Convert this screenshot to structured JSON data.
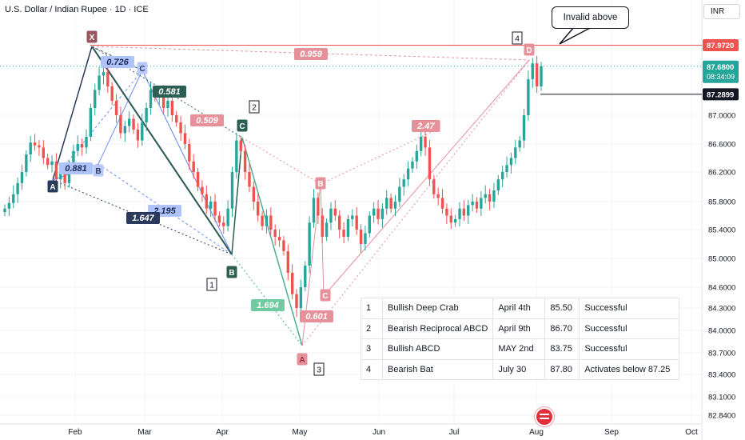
{
  "symbol_title": "U.S. Dollar / Indian Rupee · 1D · ICE",
  "currency_button": "INR",
  "callout_text": "Invalid above",
  "price_tags": {
    "red_level": "87.9720",
    "current_price": "87.6800",
    "countdown": "08:34:09",
    "black_level": "87.2899"
  },
  "colors": {
    "up": "#26a69a",
    "down": "#ef5350",
    "dark_teal": "#2c5e54",
    "blue": "#6b8ff7",
    "pink": "#e6909a",
    "navy": "#2a3a5c"
  },
  "table": {
    "rows": [
      {
        "num": "1",
        "pattern": "Bullish Deep Crab",
        "date": "April 4th",
        "price": "85.50",
        "result": "Successful"
      },
      {
        "num": "2",
        "pattern": "Bearish Reciprocal ABCD",
        "date": "April 9th",
        "price": "86.70",
        "result": "Successful"
      },
      {
        "num": "3",
        "pattern": "Bullish ABCD",
        "date": "MAY 2nd",
        "price": "83.75",
        "result": "Successful"
      },
      {
        "num": "4",
        "pattern": "Bearish Bat",
        "date": "July 30",
        "price": "87.80",
        "result": "Activates below 87.25"
      }
    ]
  },
  "chart_data": {
    "type": "candlestick",
    "x_tick_labels": [
      "Feb",
      "Mar",
      "Apr",
      "May",
      "Jun",
      "Jul",
      "Aug",
      "Sep",
      "Oct"
    ],
    "y_tick_labels": [
      "87.0000",
      "86.6000",
      "86.2000",
      "85.8000",
      "85.4000",
      "85.0000",
      "84.6000",
      "84.3000",
      "84.0000",
      "83.7000",
      "83.4000",
      "83.1000",
      "82.8400"
    ],
    "ylim": [
      82.8,
      88.3
    ],
    "price_scale": "log",
    "horizontal_levels": [
      87.972,
      87.2899
    ],
    "current_price": 87.68,
    "closes": [
      85.7,
      85.78,
      85.9,
      86.05,
      86.2,
      86.45,
      86.62,
      86.58,
      86.55,
      86.4,
      86.3,
      86.35,
      86.1,
      86.2,
      86.05,
      86.3,
      86.5,
      86.6,
      86.55,
      86.7,
      87.1,
      87.35,
      87.55,
      87.6,
      87.4,
      87.2,
      87.0,
      86.75,
      86.85,
      86.95,
      86.8,
      86.65,
      86.9,
      87.1,
      87.35,
      87.25,
      87.3,
      87.1,
      87.2,
      87.0,
      86.9,
      86.75,
      86.6,
      86.35,
      86.2,
      86.0,
      85.9,
      85.7,
      85.8,
      85.6,
      85.5,
      85.45,
      85.7,
      86.2,
      86.65,
      86.5,
      86.2,
      86.0,
      85.8,
      85.6,
      85.45,
      85.6,
      85.4,
      85.3,
      85.25,
      85.1,
      84.8,
      84.5,
      84.3,
      84.6,
      84.9,
      85.5,
      85.85,
      85.6,
      85.3,
      85.5,
      85.7,
      85.6,
      85.4,
      85.3,
      85.55,
      85.6,
      85.4,
      85.2,
      85.35,
      85.6,
      85.7,
      85.55,
      85.7,
      85.85,
      85.7,
      85.8,
      86.0,
      86.1,
      86.25,
      86.35,
      86.5,
      86.7,
      86.55,
      86.1,
      85.9,
      85.85,
      85.7,
      85.6,
      85.5,
      85.55,
      85.7,
      85.6,
      85.75,
      85.8,
      85.7,
      85.85,
      85.9,
      85.8,
      85.95,
      86.1,
      86.2,
      86.3,
      86.4,
      86.55,
      86.65,
      87.0,
      87.5,
      87.72,
      87.4,
      87.68
    ],
    "patterns": [
      {
        "id": "1",
        "name": "Bullish Deep Crab",
        "points": [
          "X",
          "A",
          "B",
          "C",
          "D"
        ],
        "ratios": [
          "0.726",
          "2.195",
          "1.647"
        ]
      },
      {
        "id": "2",
        "name": "Bearish Reciprocal ABCD",
        "points": [
          "A",
          "B",
          "C"
        ],
        "ratios": [
          "0.881",
          "0.581"
        ]
      },
      {
        "id": "3",
        "name": "Bullish ABCD",
        "points": [
          "C",
          "A"
        ],
        "ratios": [
          "0.509",
          "1.694"
        ]
      },
      {
        "id": "4",
        "name": "Bearish Bat",
        "points": [
          "A",
          "B",
          "C",
          "D"
        ],
        "ratios": [
          "0.959",
          "0.601",
          "2.47"
        ]
      }
    ]
  }
}
